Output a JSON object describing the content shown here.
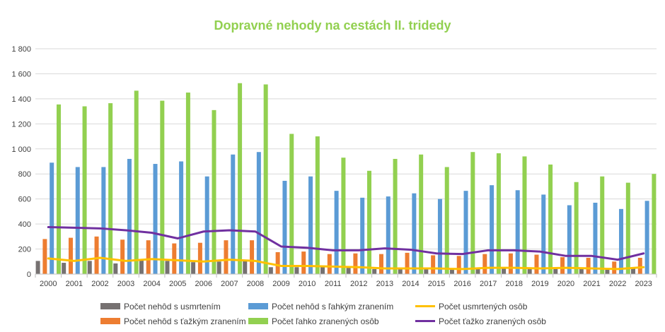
{
  "chart_data": {
    "type": "bar",
    "title": "Dopravné nehody na cestách II. tridedy",
    "title_color": "#92D050",
    "categories": [
      "2000",
      "2001",
      "2002",
      "2003",
      "2004",
      "2005",
      "2006",
      "2007",
      "2008",
      "2009",
      "2010",
      "2011",
      "2012",
      "2013",
      "2014",
      "2015",
      "2016",
      "2017",
      "2018",
      "2019",
      "2020",
      "2021",
      "2022",
      "2023"
    ],
    "ylim": [
      0,
      1800
    ],
    "yticks": [
      0,
      200,
      400,
      600,
      800,
      1000,
      1200,
      1400,
      1600,
      1800
    ],
    "ytick_labels": [
      "0",
      "200",
      "400",
      "600",
      "800",
      "1 000",
      "1 200",
      "1 400",
      "1 600",
      "1 800"
    ],
    "grid": true,
    "legend_position": "bottom",
    "series": [
      {
        "name": "Počet nehôd s usmrtením",
        "kind": "bar",
        "color": "#767171",
        "values": [
          105,
          90,
          105,
          85,
          115,
          105,
          95,
          100,
          110,
          55,
          55,
          55,
          50,
          40,
          40,
          45,
          45,
          45,
          45,
          40,
          45,
          40,
          35,
          50
        ]
      },
      {
        "name": "Počet nehôd s ťažkým zranením",
        "kind": "bar",
        "color": "#ED7D31",
        "values": [
          280,
          290,
          300,
          275,
          270,
          245,
          250,
          270,
          270,
          175,
          180,
          160,
          165,
          160,
          170,
          150,
          145,
          160,
          165,
          155,
          135,
          130,
          100,
          130
        ]
      },
      {
        "name": "Počet nehôd s ľahkým zranením",
        "kind": "bar",
        "color": "#5B9BD5",
        "values": [
          890,
          855,
          855,
          920,
          880,
          900,
          780,
          955,
          975,
          745,
          780,
          665,
          610,
          620,
          645,
          600,
          665,
          710,
          670,
          635,
          550,
          570,
          520,
          585
        ]
      },
      {
        "name": "Počet ľahko zranených osôb",
        "kind": "bar",
        "color": "#92D050",
        "values": [
          1355,
          1340,
          1365,
          1465,
          1385,
          1450,
          1310,
          1525,
          1515,
          1120,
          1100,
          930,
          825,
          920,
          955,
          855,
          975,
          965,
          940,
          875,
          735,
          780,
          730,
          800
        ]
      },
      {
        "name": "Počet usmrtených osôb",
        "kind": "line",
        "color": "#FFC000",
        "values": [
          125,
          105,
          130,
          105,
          120,
          110,
          100,
          115,
          105,
          65,
          65,
          60,
          55,
          45,
          45,
          45,
          40,
          50,
          50,
          45,
          50,
          45,
          40,
          55
        ]
      },
      {
        "name": "Počet ťažko zranených osôb",
        "kind": "line",
        "color": "#7030A0",
        "values": [
          375,
          370,
          365,
          350,
          330,
          285,
          340,
          350,
          340,
          220,
          210,
          190,
          190,
          205,
          195,
          165,
          160,
          190,
          190,
          180,
          145,
          145,
          115,
          165
        ]
      }
    ]
  }
}
